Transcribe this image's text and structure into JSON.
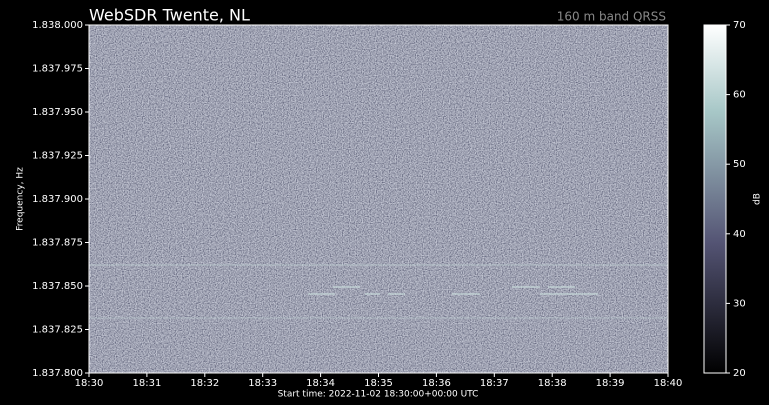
{
  "chart_data": {
    "type": "spectrogram",
    "title": "WebSDR Twente, NL",
    "subtitle": "160 m band QRSS",
    "ylabel": "Frequency, Hz",
    "xlabel": "Start time: 2022-11-02 18:30:00+00:00 UTC",
    "xticks": [
      "18:30",
      "18:31",
      "18:32",
      "18:33",
      "18:34",
      "18:35",
      "18:36",
      "18:37",
      "18:38",
      "18:39",
      "18:40"
    ],
    "ylim": [
      1837800,
      1838000
    ],
    "yticks": [
      {
        "value": 1837800,
        "label": "1.837.800"
      },
      {
        "value": 1837825,
        "label": "1.837.825"
      },
      {
        "value": 1837850,
        "label": "1.837.850"
      },
      {
        "value": 1837875,
        "label": "1.837.875"
      },
      {
        "value": 1837900,
        "label": "1.837.900"
      },
      {
        "value": 1837925,
        "label": "1.837.925"
      },
      {
        "value": 1837950,
        "label": "1.837.950"
      },
      {
        "value": 1837975,
        "label": "1.837.975"
      },
      {
        "value": 1838000,
        "label": "1.838.000"
      }
    ],
    "colorbar_label": "dB",
    "clim": [
      20,
      70
    ],
    "cticks": [
      20,
      30,
      40,
      50,
      60,
      70
    ],
    "colormap": "bone"
  }
}
